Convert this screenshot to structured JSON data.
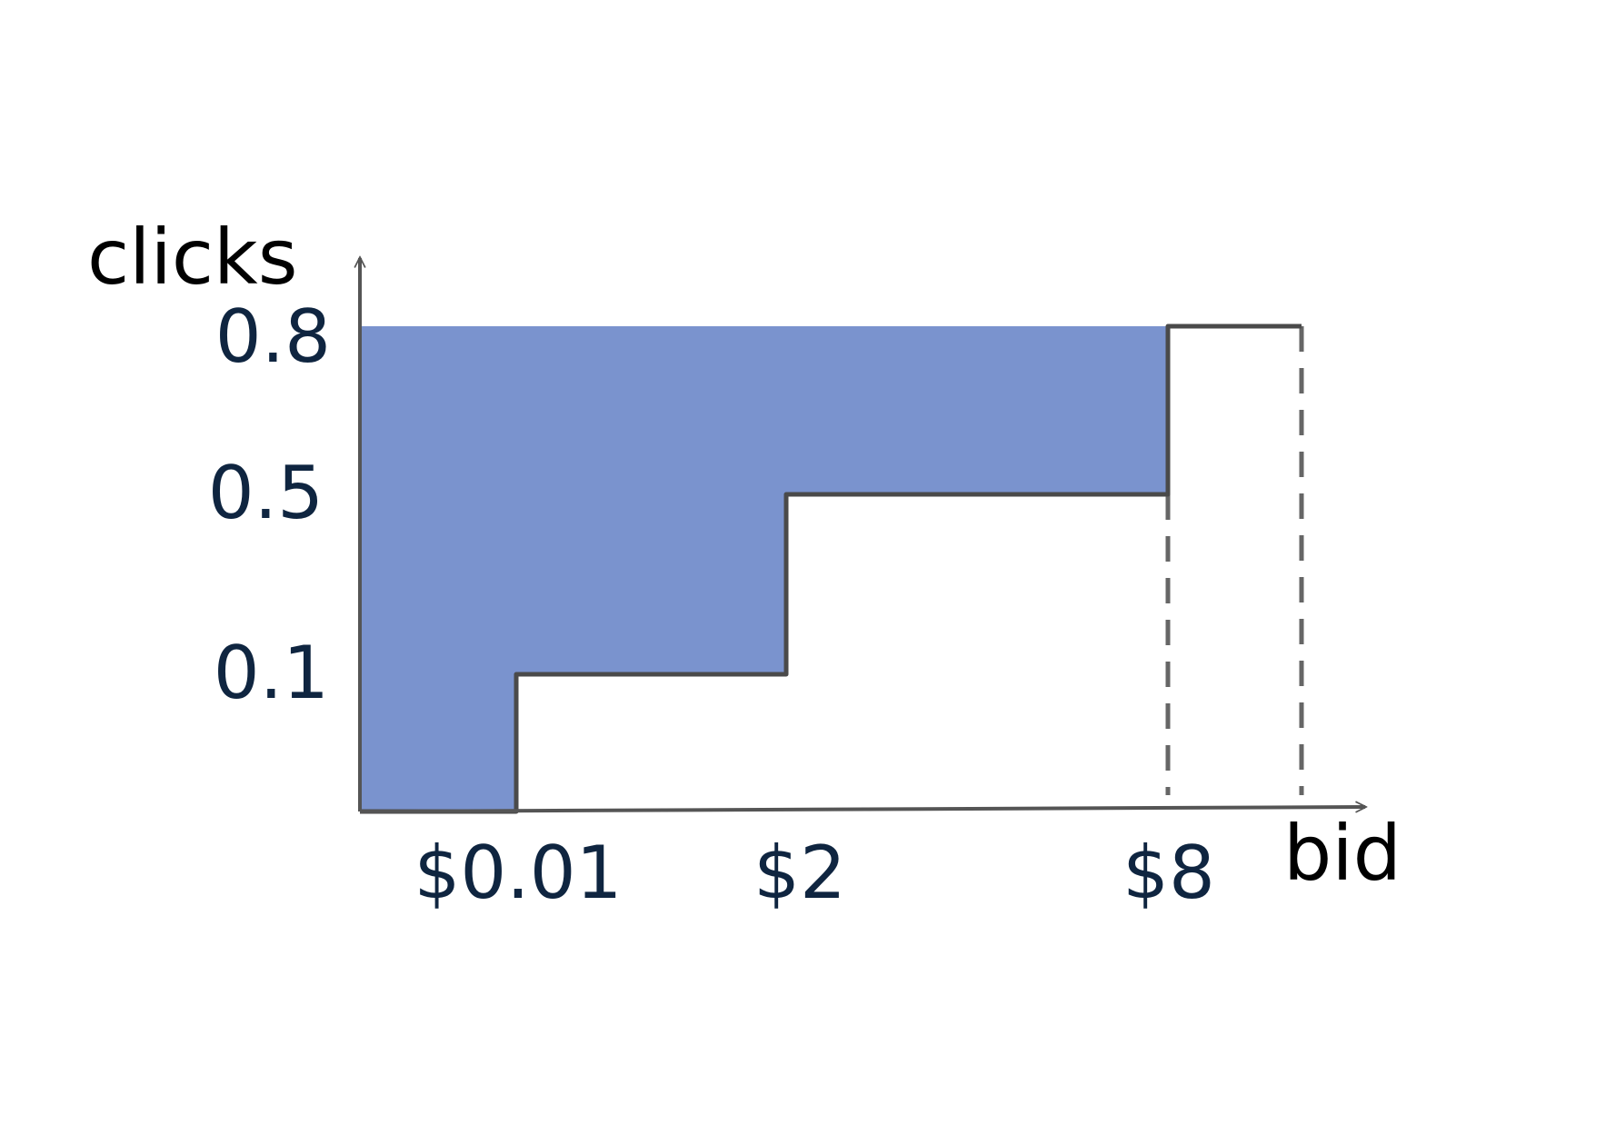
{
  "chart_data": {
    "type": "area",
    "title": "",
    "xlabel": "bid",
    "ylabel": "clicks",
    "x_ticks": [
      "$0.01",
      "$2",
      "$8"
    ],
    "y_ticks": [
      "0.1",
      "0.5",
      "0.8"
    ],
    "grid": false,
    "legend": "none",
    "step_curve": {
      "name": "",
      "points": [
        {
          "bid": 0,
          "clicks": 0
        },
        {
          "bid": 0.01,
          "clicks": 0
        },
        {
          "bid": 0.01,
          "clicks": 0.1
        },
        {
          "bid": 2,
          "clicks": 0.1
        },
        {
          "bid": 2,
          "clicks": 0.5
        },
        {
          "bid": 8,
          "clicks": 0.5
        },
        {
          "bid": 8,
          "clicks": 0.8
        },
        {
          "bid": 9,
          "clicks": 0.8
        }
      ]
    },
    "shaded_region": "area between clicks = 0.8 and the step curve, from bid 0 to $8",
    "dashed_verticals_at_bid": [
      8,
      9
    ],
    "colors": {
      "fill": "#7a93ce",
      "curve": "#4a4a4a",
      "axis": "#555555",
      "dashed": "#666666",
      "tick_text": "#0f2540",
      "axis_title_text": "#000000"
    }
  }
}
